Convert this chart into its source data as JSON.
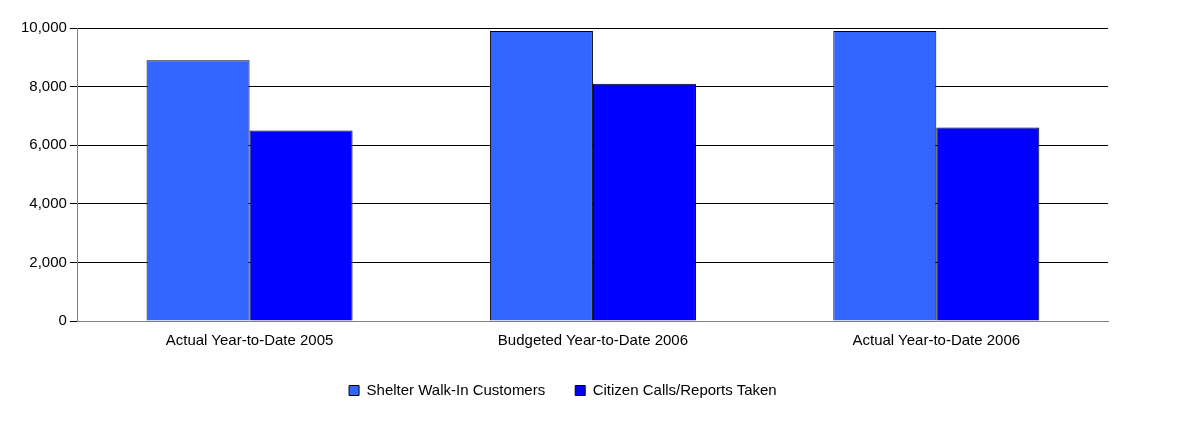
{
  "chart_data": {
    "type": "bar",
    "categories": [
      "Actual Year-to-Date 2005",
      "Budgeted Year-to-Date 2006",
      "Actual Year-to-Date 2006"
    ],
    "series": [
      {
        "name": "Shelter Walk-In Customers",
        "color": "#3366ff",
        "values": [
          8900,
          9900,
          9900
        ]
      },
      {
        "name": "Citizen Calls/Reports Taken",
        "color": "#0000ff",
        "values": [
          6500,
          8100,
          6600
        ]
      }
    ],
    "ylim": [
      0,
      10000
    ],
    "yticks": [
      {
        "value": 0,
        "label": "0"
      },
      {
        "value": 2000,
        "label": "2,000"
      },
      {
        "value": 4000,
        "label": "4,000"
      },
      {
        "value": 6000,
        "label": "6,000"
      },
      {
        "value": 8000,
        "label": "8,000"
      },
      {
        "value": 10000,
        "label": "10,000"
      }
    ],
    "grid": "y",
    "legend": "bottom"
  }
}
